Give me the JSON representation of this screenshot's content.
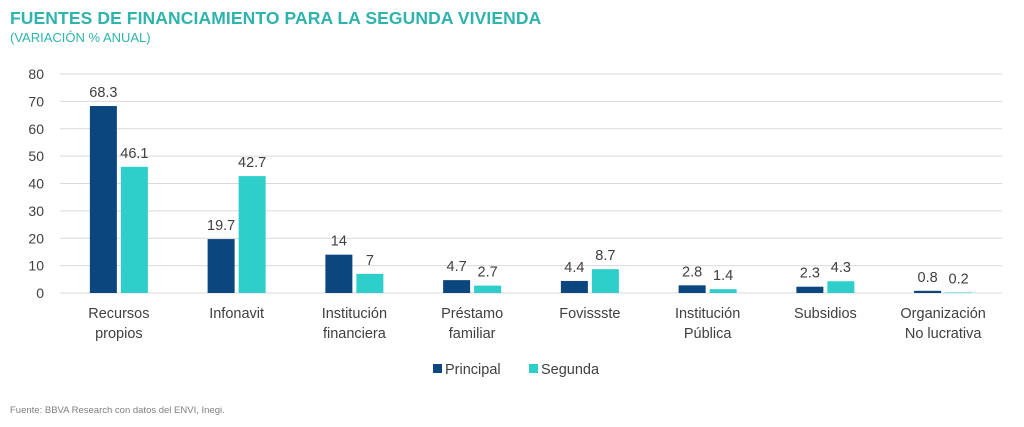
{
  "header": {
    "title": "FUENTES DE FINANCIAMIENTO PARA LA SEGUNDA VIVIENDA",
    "subtitle": "(VARIACIÓN % ANUAL)"
  },
  "footer": {
    "source": "Fuente: BBVA Research con datos del ENVI, Inegi."
  },
  "colors": {
    "principal": "#0b467f",
    "segunda": "#2ecfcb",
    "grid": "#d9d9d9",
    "title": "#2eb3ad"
  },
  "chart_data": {
    "type": "bar",
    "categories": [
      [
        "Recursos",
        "propios"
      ],
      [
        "Infonavit"
      ],
      [
        "Institución",
        "financiera"
      ],
      [
        "Préstamo",
        "familiar"
      ],
      [
        "Fovissste"
      ],
      [
        "Institución",
        "Pública"
      ],
      [
        "Subsidios"
      ],
      [
        "Organización",
        "No lucrativa"
      ]
    ],
    "series": [
      {
        "name": "Principal",
        "values": [
          68.3,
          19.7,
          14,
          4.7,
          4.4,
          2.8,
          2.3,
          0.8
        ]
      },
      {
        "name": "Segunda",
        "values": [
          46.1,
          42.7,
          7,
          2.7,
          8.7,
          1.4,
          4.3,
          0.2
        ]
      }
    ],
    "ylim": [
      0,
      80
    ],
    "yticks": [
      0,
      10,
      20,
      30,
      40,
      50,
      60,
      70,
      80
    ],
    "grid": true,
    "legend": "bottom",
    "data_labels": true
  }
}
